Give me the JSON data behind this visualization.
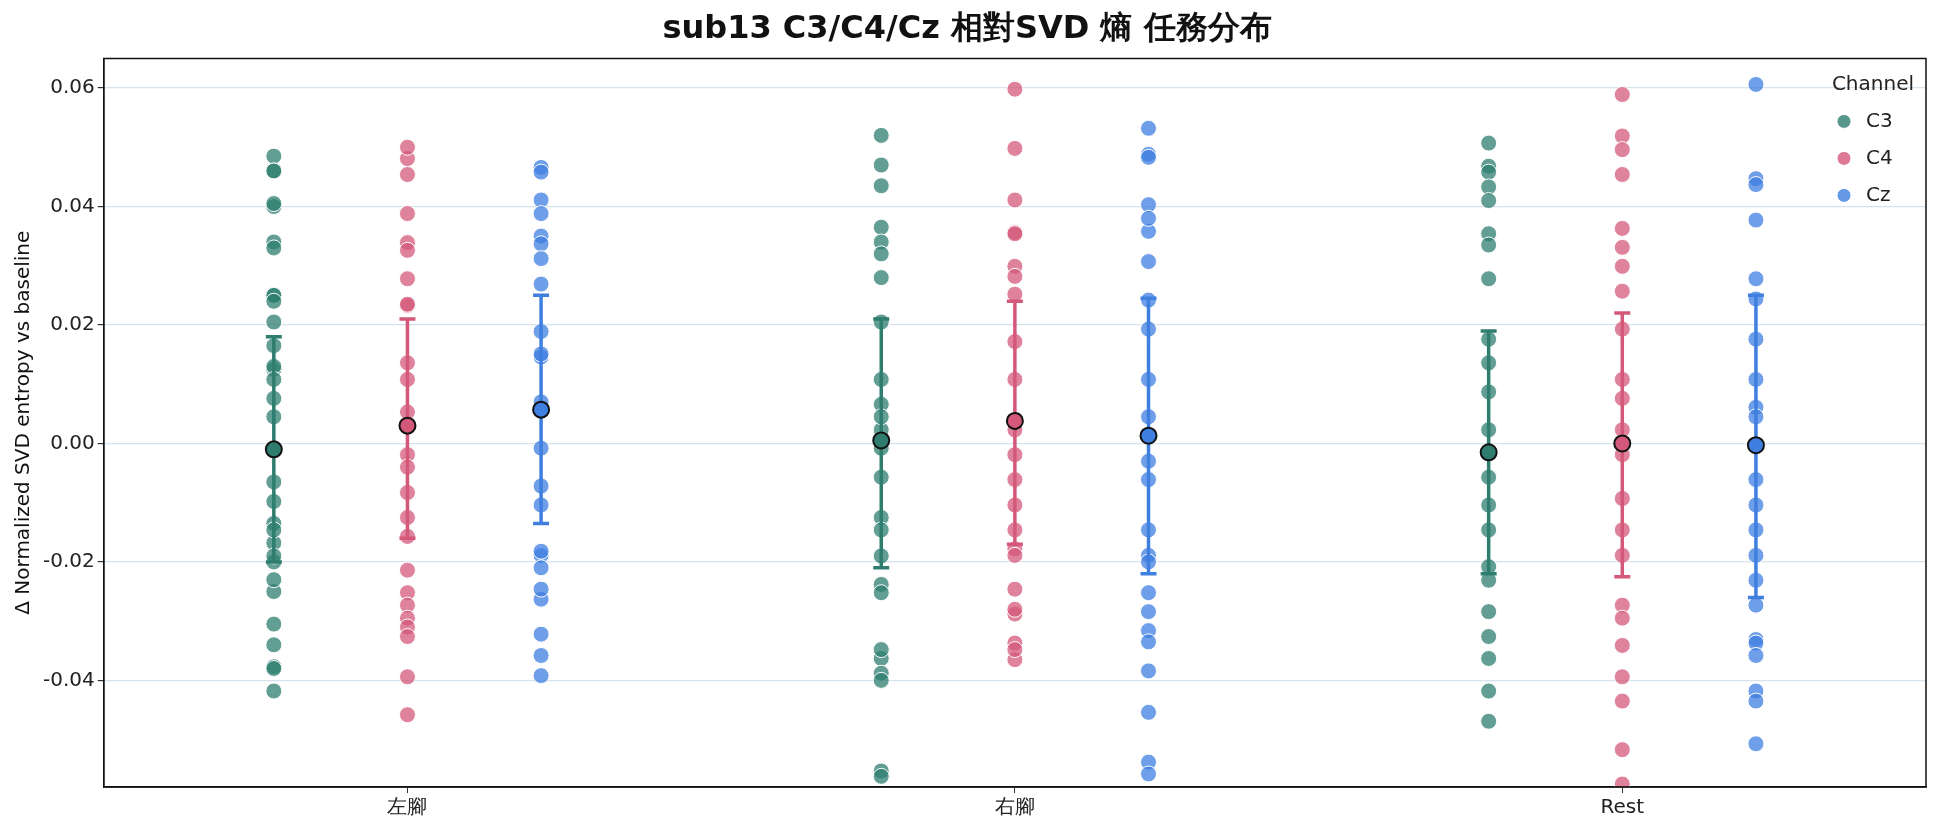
{
  "chart_data": {
    "type": "scatter",
    "title": "sub13 C3/C4/Cz 相對SVD 熵 任務分布",
    "ylabel": "Δ Normalized SVD entropy vs baseline",
    "legend_title": "Channel",
    "legend": "top right",
    "grid": "y",
    "marker": "circle",
    "categories": [
      "左腳",
      "右腳",
      "Rest"
    ],
    "ylim": [
      -0.058,
      0.065
    ],
    "yticks": [
      -0.04,
      -0.02,
      {
        "value": 0,
        "label": "0.00"
      },
      0.02,
      0.04,
      0.06
    ],
    "series": [
      {
        "name": "C3",
        "color": "#2e7d6f",
        "x": [
          "左腳",
          "左腳",
          "左腳",
          "左腳",
          "左腳",
          "左腳",
          "左腳",
          "左腳",
          "左腳",
          "左腳",
          "左腳",
          "左腳",
          "左腳",
          "左腳",
          "左腳",
          "左腳",
          "左腳",
          "左腳",
          "左腳",
          "左腳",
          "左腳",
          "左腳",
          "左腳",
          "左腳",
          "左腳",
          "左腳",
          "左腳",
          "左腳",
          "左腳",
          "左腳",
          "左腳",
          "右腳",
          "右腳",
          "右腳",
          "右腳",
          "右腳",
          "右腳",
          "右腳",
          "右腳",
          "右腳",
          "右腳",
          "右腳",
          "右腳",
          "右腳",
          "右腳",
          "右腳",
          "右腳",
          "右腳",
          "右腳",
          "右腳",
          "右腳",
          "右腳",
          "右腳",
          "右腳",
          "右腳",
          "右腳",
          "Rest",
          "Rest",
          "Rest",
          "Rest",
          "Rest",
          "Rest",
          "Rest",
          "Rest",
          "Rest",
          "Rest",
          "Rest",
          "Rest",
          "Rest",
          "Rest",
          "Rest",
          "Rest",
          "Rest",
          "Rest",
          "Rest",
          "Rest",
          "Rest",
          "Rest"
        ],
        "values": [
          0.0485,
          0.046,
          0.046,
          0.04,
          0.0405,
          0.034,
          0.033,
          0.025,
          0.025,
          0.024,
          0.0205,
          0.0125,
          0.013,
          0.0165,
          -0.0065,
          -0.0098,
          -0.0135,
          -0.0168,
          -0.02,
          -0.025,
          -0.0305,
          -0.0377,
          -0.038,
          -0.0418,
          -0.034,
          0.0076,
          -0.0146,
          0.0108,
          0.0045,
          -0.023,
          -0.019,
          0.047,
          0.052,
          0.0435,
          0.0365,
          0.034,
          0.032,
          0.028,
          0.0205,
          0.0108,
          0.0066,
          -0.0008,
          -0.0057,
          -0.0125,
          -0.019,
          -0.0238,
          -0.0252,
          -0.0363,
          -0.0348,
          -0.0388,
          -0.04,
          -0.0553,
          -0.0562,
          0.0023,
          0.0045,
          -0.0146,
          0.0507,
          0.0468,
          0.0458,
          0.0433,
          0.041,
          0.0354,
          0.0335,
          0.0278,
          0.0176,
          0.0136,
          0.0087,
          -0.0057,
          -0.0146,
          -0.0208,
          -0.0231,
          -0.0284,
          -0.0326,
          -0.0363,
          -0.0418,
          -0.0469,
          -0.0104,
          0.0023
        ]
      },
      {
        "name": "C4",
        "color": "#d4587a",
        "x": [
          "左腳",
          "左腳",
          "左腳",
          "左腳",
          "左腳",
          "左腳",
          "左腳",
          "左腳",
          "左腳",
          "左腳",
          "左腳",
          "左腳",
          "左腳",
          "左腳",
          "左腳",
          "左腳",
          "左腳",
          "左腳",
          "左腳",
          "左腳",
          "左腳",
          "左腳",
          "左腳",
          "左腳",
          "左腳",
          "右腳",
          "右腳",
          "右腳",
          "右腳",
          "右腳",
          "右腳",
          "右腳",
          "右腳",
          "右腳",
          "右腳",
          "右腳",
          "右腳",
          "右腳",
          "右腳",
          "右腳",
          "右腳",
          "右腳",
          "右腳",
          "右腳",
          "右腳",
          "右腳",
          "右腳",
          "右腳",
          "Rest",
          "Rest",
          "Rest",
          "Rest",
          "Rest",
          "Rest",
          "Rest",
          "Rest",
          "Rest",
          "Rest",
          "Rest",
          "Rest",
          "Rest",
          "Rest",
          "Rest",
          "Rest",
          "Rest",
          "Rest",
          "Rest",
          "Rest",
          "Rest",
          "Rest",
          "Rest"
        ],
        "values": [
          0.0481,
          0.05,
          0.0454,
          0.0388,
          0.0339,
          0.0326,
          0.0278,
          0.0233,
          0.0235,
          0.0136,
          0.0053,
          -0.0019,
          -0.0125,
          -0.0157,
          -0.0214,
          -0.0252,
          -0.0273,
          -0.0295,
          -0.031,
          -0.0326,
          -0.0394,
          -0.0458,
          0.0108,
          -0.0083,
          -0.004,
          0.0598,
          0.0498,
          0.0411,
          0.0356,
          0.0354,
          0.0299,
          0.0282,
          0.0252,
          0.0172,
          0.0108,
          -0.0019,
          -0.0104,
          -0.0146,
          -0.0178,
          -0.0189,
          -0.0246,
          -0.0288,
          -0.028,
          -0.0337,
          -0.0365,
          -0.0348,
          -0.0061,
          0.0023,
          0.0589,
          0.0519,
          0.0496,
          0.0454,
          0.0363,
          0.0331,
          0.0299,
          0.0257,
          0.0193,
          0.0076,
          0.0023,
          -0.0093,
          -0.0146,
          -0.0189,
          -0.0273,
          -0.0295,
          -0.0341,
          -0.0394,
          -0.0435,
          -0.0517,
          -0.0575,
          -0.0019,
          0.0108
        ]
      },
      {
        "name": "Cz",
        "color": "#3f7fe0",
        "x": [
          "左腳",
          "左腳",
          "左腳",
          "左腳",
          "左腳",
          "左腳",
          "左腳",
          "左腳",
          "左腳",
          "左腳",
          "左腳",
          "左腳",
          "左腳",
          "左腳",
          "左腳",
          "左腳",
          "左腳",
          "左腳",
          "左腳",
          "左腳",
          "左腳",
          "左腳",
          "左腳",
          "右腳",
          "右腳",
          "右腳",
          "右腳",
          "右腳",
          "右腳",
          "右腳",
          "右腳",
          "右腳",
          "右腳",
          "右腳",
          "右腳",
          "右腳",
          "右腳",
          "右腳",
          "右腳",
          "右腳",
          "右腳",
          "右腳",
          "右腳",
          "右腳",
          "右腳",
          "右腳",
          "右腳",
          "Rest",
          "Rest",
          "Rest",
          "Rest",
          "Rest",
          "Rest",
          "Rest",
          "Rest",
          "Rest",
          "Rest",
          "Rest",
          "Rest",
          "Rest",
          "Rest",
          "Rest",
          "Rest",
          "Rest",
          "Rest",
          "Rest",
          "Rest",
          "Rest",
          "Rest"
        ],
        "values": [
          0.0466,
          0.0458,
          0.0411,
          0.0388,
          0.035,
          0.0337,
          0.0312,
          0.0269,
          0.0189,
          0.0146,
          0.007,
          -0.0008,
          -0.0072,
          -0.0104,
          -0.0189,
          -0.021,
          -0.0182,
          -0.0263,
          -0.0246,
          -0.0322,
          -0.0358,
          -0.0392,
          0.0151,
          0.0532,
          0.0488,
          0.0483,
          0.0403,
          0.0358,
          0.038,
          0.0307,
          0.0242,
          0.0193,
          0.0108,
          -0.003,
          -0.0061,
          -0.0146,
          -0.0189,
          -0.02,
          -0.0252,
          -0.0284,
          -0.0316,
          -0.0335,
          -0.0384,
          -0.0454,
          -0.0538,
          -0.0558,
          0.0045,
          0.0606,
          0.0447,
          0.0437,
          0.0377,
          0.0244,
          0.0278,
          0.0176,
          0.0061,
          0.0045,
          -0.0061,
          -0.0146,
          -0.0189,
          -0.0231,
          -0.0273,
          -0.0331,
          -0.0337,
          -0.0358,
          -0.0418,
          -0.0435,
          -0.0507,
          -0.0104,
          0.0108
        ]
      },
      {
        "color": "#2e7d6f",
        "x": [
          "左腳",
          "右腳",
          "Rest"
        ],
        "values": [
          -0.001,
          0.0005,
          -0.0015
        ],
        "errors": [
          [
            -0.02,
            0.018
          ],
          [
            -0.021,
            0.021
          ],
          [
            -0.022,
            0.019
          ]
        ]
      },
      {
        "color": "#d4587a",
        "x": [
          "左腳",
          "右腳",
          "Rest"
        ],
        "values": [
          0.003,
          0.0038,
          0
        ],
        "errors": [
          [
            -0.016,
            0.021
          ],
          [
            -0.017,
            0.024
          ],
          [
            -0.0225,
            0.022
          ]
        ]
      },
      {
        "color": "#3f7fe0",
        "x": [
          "左腳",
          "右腳",
          "Rest"
        ],
        "values": [
          0.0057,
          0.0013,
          -0.0003
        ],
        "errors": [
          [
            -0.0135,
            0.025
          ],
          [
            -0.022,
            0.0245
          ],
          [
            -0.026,
            0.025
          ]
        ]
      }
    ]
  }
}
